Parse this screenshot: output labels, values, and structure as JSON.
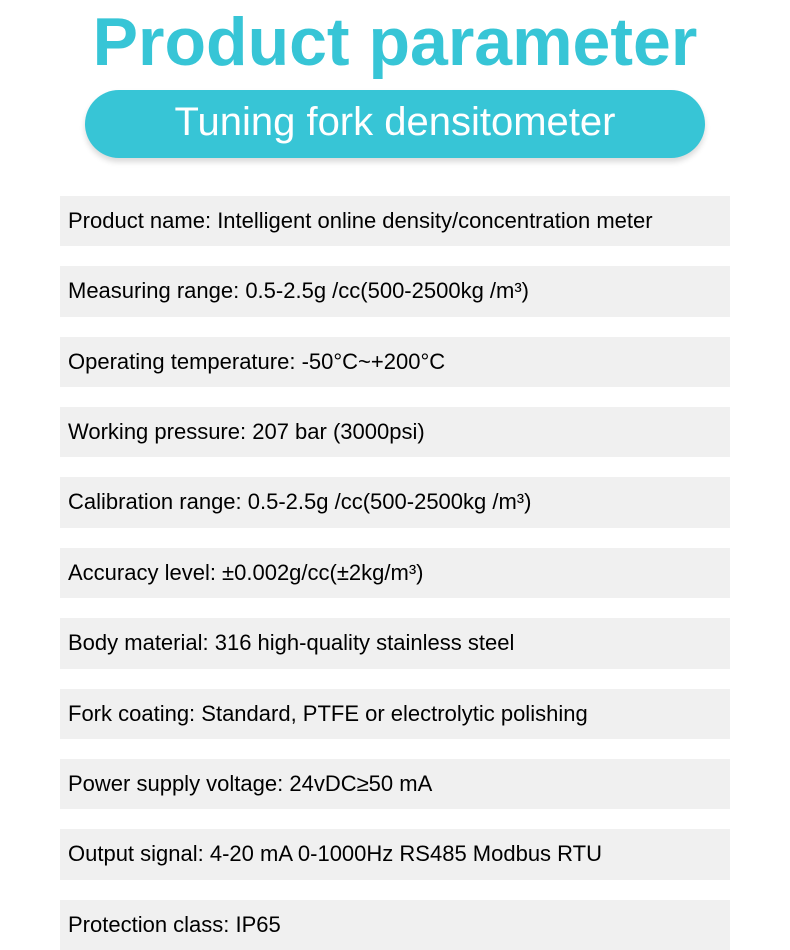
{
  "colors": {
    "title": "#37c5d6",
    "pill_bg": "#37c5d6",
    "pill_text": "#ffffff",
    "row_bg": "#f0f0f0",
    "row_text": "#000000",
    "page_bg": "#ffffff"
  },
  "title": "Product parameter",
  "subtitle": "Tuning fork densitometer",
  "specs": [
    "Product name: Intelligent online density/concentration meter",
    "Measuring range: 0.5-2.5g /cc(500-2500kg /m³)",
    "Operating temperature: -50°C~+200°C",
    "Working pressure: 207 bar (3000psi)",
    "Calibration range: 0.5-2.5g /cc(500-2500kg /m³)",
    "Accuracy level: ±0.002g/cc(±2kg/m³)",
    "Body material: 316 high-quality stainless steel",
    "Fork coating: Standard, PTFE or electrolytic polishing",
    "Power supply voltage: 24vDC≥50 mA",
    "Output signal: 4-20 mA 0-1000Hz RS485 Modbus RTU",
    "Protection class: IP65"
  ]
}
